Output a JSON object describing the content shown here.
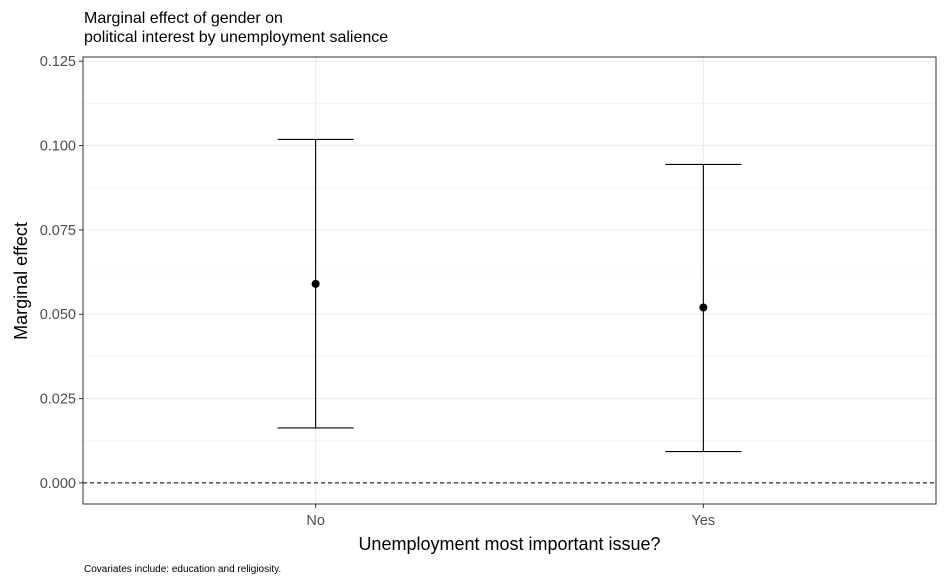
{
  "chart_data": {
    "type": "errorbar",
    "title": "Marginal effect of gender on\npolitical interest by unemployment salience",
    "xlabel": "Unemployment most important issue?",
    "ylabel": "Marginal effect",
    "caption": "Covariates include: education and religiosity.",
    "categories": [
      "No",
      "Yes"
    ],
    "estimates": [
      0.059,
      0.052
    ],
    "ci_lower": [
      0.0163,
      0.0093
    ],
    "ci_upper": [
      0.1018,
      0.0944
    ],
    "y_ticks": [
      0.0,
      0.025,
      0.05,
      0.075,
      0.1,
      0.125
    ],
    "y_tick_labels": [
      "0.000",
      "0.025",
      "0.050",
      "0.075",
      "0.100",
      "0.125"
    ],
    "ylim": [
      -0.00625,
      0.12625
    ],
    "reference_line": 0,
    "reference_line_style": "dashed",
    "grid": true,
    "legend": "none"
  }
}
